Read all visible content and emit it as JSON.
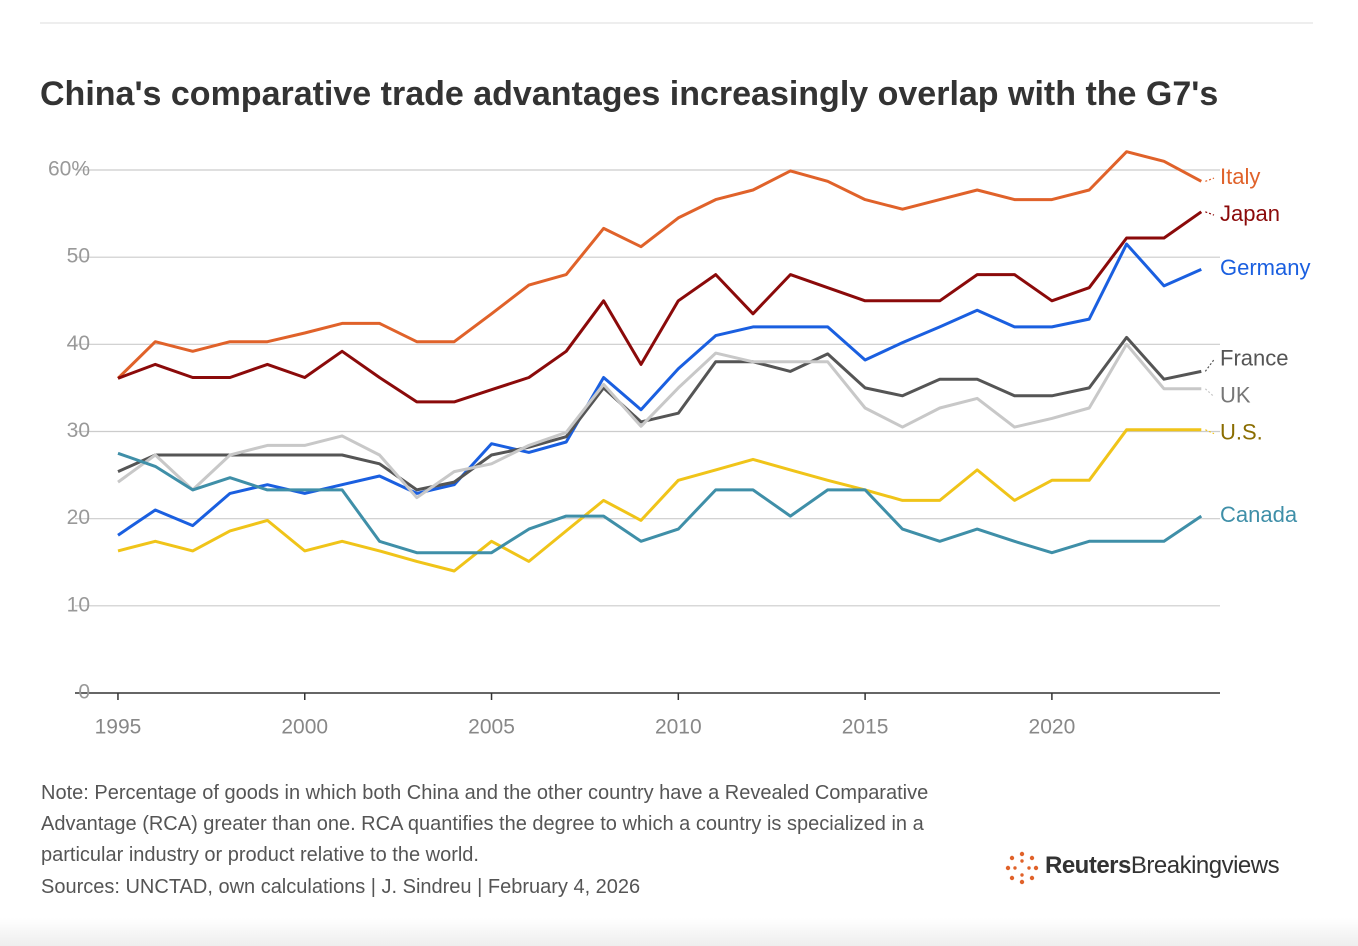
{
  "chart_data": {
    "type": "line",
    "title": "China's comparative trade advantages increasingly overlap with the G7's",
    "x": [
      1995,
      1996,
      1997,
      1998,
      1999,
      2000,
      2001,
      2002,
      2003,
      2004,
      2005,
      2006,
      2007,
      2008,
      2009,
      2010,
      2011,
      2012,
      2013,
      2014,
      2015,
      2016,
      2017,
      2018,
      2019,
      2020,
      2021,
      2022,
      2023,
      2024
    ],
    "xlim": [
      1993.85,
      2024.5
    ],
    "xticks": [
      1995,
      2000,
      2005,
      2010,
      2015,
      2020
    ],
    "ylim": [
      0,
      60
    ],
    "yticks": [
      0,
      10,
      20,
      30,
      40,
      50,
      {
        "value": 60,
        "label": "60%"
      }
    ],
    "grid": true,
    "series": [
      {
        "name": "Italy",
        "color": "#e0622a",
        "label_color": "#e0622a",
        "values": [
          36.1,
          40.3,
          39.2,
          40.3,
          40.3,
          41.3,
          42.4,
          42.4,
          40.3,
          40.3,
          43.5,
          46.8,
          48,
          53.3,
          51.2,
          54.5,
          56.6,
          57.7,
          59.9,
          58.7,
          56.6,
          55.5,
          56.6,
          57.7,
          56.6,
          56.6,
          57.7,
          62.1,
          61,
          58.7
        ]
      },
      {
        "name": "Japan",
        "color": "#8b0a0a",
        "label_color": "#8b0a0a",
        "values": [
          36.1,
          37.7,
          36.2,
          36.2,
          37.7,
          36.2,
          39.2,
          36.2,
          33.4,
          33.4,
          34.8,
          36.2,
          39.2,
          45,
          37.7,
          45,
          48,
          43.5,
          48,
          46.5,
          45,
          45,
          45,
          48,
          48,
          45,
          46.5,
          52.2,
          52.2,
          55.2
        ]
      },
      {
        "name": "Germany",
        "color": "#1a5fe0",
        "label_color": "#1a5fe0",
        "values": [
          18.1,
          21,
          19.2,
          22.9,
          23.9,
          22.9,
          23.9,
          24.9,
          22.9,
          23.9,
          28.6,
          27.6,
          28.8,
          36.2,
          32.5,
          37.2,
          41,
          42,
          42,
          42,
          38.2,
          40.2,
          42,
          43.9,
          42,
          42,
          42.9,
          51.5,
          46.7,
          48.6
        ]
      },
      {
        "name": "France",
        "color": "#555555",
        "label_color": "#555555",
        "values": [
          25.4,
          27.3,
          27.3,
          27.3,
          27.3,
          27.3,
          27.3,
          26.3,
          23.3,
          24.2,
          27.3,
          28.2,
          29.4,
          35,
          31.1,
          32.1,
          38,
          38,
          36.9,
          38.9,
          35,
          34.1,
          36,
          36,
          34.1,
          34.1,
          35,
          40.8,
          36,
          36.9
        ]
      },
      {
        "name": "UK",
        "color": "#c8c8c8",
        "label_color": "#777777",
        "values": [
          24.2,
          27.3,
          23.3,
          27.3,
          28.4,
          28.4,
          29.5,
          27.3,
          22.4,
          25.4,
          26.3,
          28.4,
          29.9,
          35.4,
          30.6,
          35,
          39,
          38,
          38,
          38,
          32.7,
          30.5,
          32.7,
          33.8,
          30.5,
          31.5,
          32.7,
          40,
          34.9,
          34.9
        ]
      },
      {
        "name": "U.S.",
        "color": "#f0c419",
        "label_color": "#8a6d00",
        "values": [
          16.3,
          17.4,
          16.3,
          18.6,
          19.8,
          16.3,
          17.4,
          16.3,
          15.1,
          14,
          17.4,
          15.1,
          18.6,
          22.1,
          19.8,
          24.4,
          25.6,
          26.8,
          25.6,
          24.4,
          23.3,
          22.1,
          22.1,
          25.6,
          22.1,
          24.4,
          24.4,
          30.2,
          30.2,
          30.2
        ]
      },
      {
        "name": "Canada",
        "color": "#3f8fa8",
        "label_color": "#3f8fa8",
        "values": [
          27.5,
          26,
          23.3,
          24.7,
          23.3,
          23.3,
          23.3,
          17.4,
          16.1,
          16.1,
          16.1,
          18.8,
          20.3,
          20.3,
          17.4,
          18.8,
          23.3,
          23.3,
          20.3,
          23.3,
          23.3,
          18.8,
          17.4,
          18.8,
          17.4,
          16.1,
          17.4,
          17.4,
          17.4,
          20.3
        ]
      }
    ],
    "note": "Note: Percentage of goods in which both China and the other country have a Revealed Comparative Advantage (RCA) greater than one. RCA quantifies the degree to which a country is specialized in a particular industry or product relative to the world.",
    "source": "Sources: UNCTAD, own calculations | J. Sindreu | February 4, 2026",
    "logo_text": [
      "Reuters",
      "Breakingviews"
    ]
  }
}
